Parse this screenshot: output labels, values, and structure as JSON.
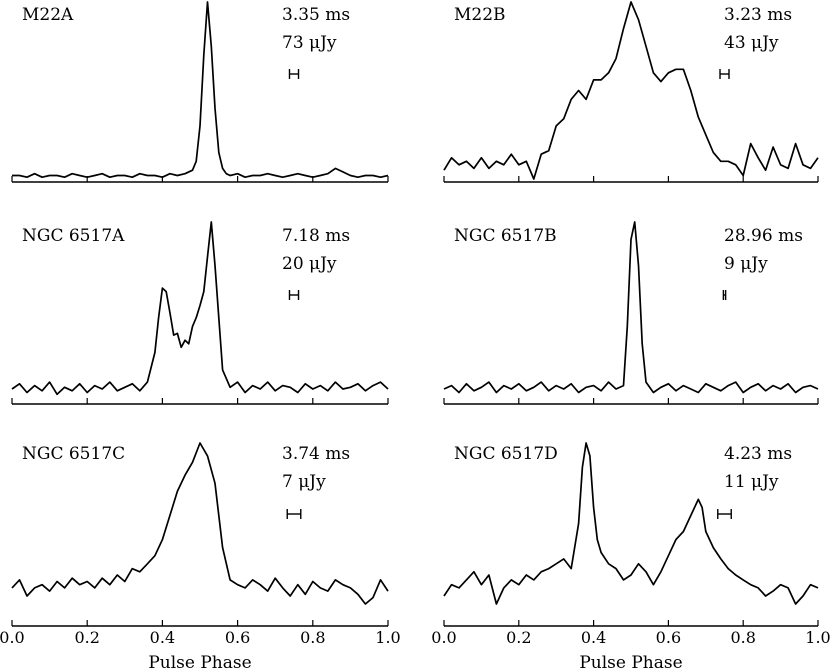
{
  "chart_data": [
    {
      "type": "line",
      "name": "M22A",
      "period": "3.35 ms",
      "flux": "73 μJy",
      "xlim": [
        0,
        1
      ],
      "ylim": [
        0,
        1
      ],
      "xticks": [
        0.0,
        0.2,
        0.4,
        0.6,
        0.8,
        1.0
      ],
      "show_tick_labels": false,
      "xlabel": "",
      "errorbar": {
        "center": 0.75,
        "halfwidth": 0.012
      },
      "x": [
        0.0,
        0.02,
        0.04,
        0.06,
        0.08,
        0.1,
        0.12,
        0.14,
        0.16,
        0.18,
        0.2,
        0.22,
        0.24,
        0.26,
        0.28,
        0.3,
        0.32,
        0.34,
        0.36,
        0.38,
        0.4,
        0.42,
        0.44,
        0.46,
        0.48,
        0.49,
        0.5,
        0.51,
        0.52,
        0.53,
        0.54,
        0.55,
        0.56,
        0.57,
        0.58,
        0.6,
        0.62,
        0.64,
        0.66,
        0.68,
        0.7,
        0.72,
        0.74,
        0.76,
        0.78,
        0.8,
        0.82,
        0.84,
        0.86,
        0.88,
        0.9,
        0.92,
        0.94,
        0.96,
        0.98,
        1.0
      ],
      "y": [
        0.02,
        0.02,
        0.01,
        0.03,
        0.01,
        0.02,
        0.02,
        0.01,
        0.03,
        0.02,
        0.01,
        0.02,
        0.03,
        0.01,
        0.02,
        0.02,
        0.01,
        0.03,
        0.02,
        0.02,
        0.01,
        0.03,
        0.02,
        0.03,
        0.05,
        0.1,
        0.3,
        0.7,
        1.0,
        0.75,
        0.4,
        0.15,
        0.06,
        0.03,
        0.02,
        0.03,
        0.01,
        0.02,
        0.02,
        0.03,
        0.02,
        0.01,
        0.02,
        0.03,
        0.02,
        0.01,
        0.02,
        0.03,
        0.06,
        0.04,
        0.02,
        0.01,
        0.02,
        0.02,
        0.01,
        0.02
      ]
    },
    {
      "type": "line",
      "name": "M22B",
      "period": "3.23 ms",
      "flux": "43 μJy",
      "xlim": [
        0,
        1
      ],
      "ylim": [
        0,
        1
      ],
      "xticks": [
        0.0,
        0.2,
        0.4,
        0.6,
        0.8,
        1.0
      ],
      "show_tick_labels": false,
      "xlabel": "",
      "errorbar": {
        "center": 0.75,
        "halfwidth": 0.012
      },
      "x": [
        0.0,
        0.02,
        0.04,
        0.06,
        0.08,
        0.1,
        0.12,
        0.14,
        0.16,
        0.18,
        0.2,
        0.22,
        0.24,
        0.26,
        0.28,
        0.3,
        0.32,
        0.34,
        0.36,
        0.38,
        0.4,
        0.42,
        0.44,
        0.46,
        0.48,
        0.5,
        0.52,
        0.54,
        0.56,
        0.58,
        0.6,
        0.62,
        0.64,
        0.66,
        0.68,
        0.7,
        0.72,
        0.74,
        0.76,
        0.78,
        0.8,
        0.82,
        0.84,
        0.86,
        0.88,
        0.9,
        0.92,
        0.94,
        0.96,
        0.98,
        1.0
      ],
      "y": [
        0.05,
        0.12,
        0.08,
        0.1,
        0.06,
        0.12,
        0.06,
        0.1,
        0.08,
        0.14,
        0.08,
        0.1,
        0.0,
        0.14,
        0.16,
        0.3,
        0.34,
        0.45,
        0.5,
        0.45,
        0.56,
        0.56,
        0.6,
        0.68,
        0.85,
        1.0,
        0.9,
        0.75,
        0.6,
        0.55,
        0.6,
        0.62,
        0.62,
        0.5,
        0.35,
        0.25,
        0.15,
        0.1,
        0.1,
        0.08,
        0.02,
        0.2,
        0.12,
        0.05,
        0.18,
        0.08,
        0.06,
        0.2,
        0.08,
        0.06,
        0.12
      ]
    },
    {
      "type": "line",
      "name": "NGC 6517A",
      "period": "7.18 ms",
      "flux": "20 μJy",
      "xlim": [
        0,
        1
      ],
      "ylim": [
        0,
        1
      ],
      "xticks": [
        0.0,
        0.2,
        0.4,
        0.6,
        0.8,
        1.0
      ],
      "show_tick_labels": false,
      "xlabel": "",
      "errorbar": {
        "center": 0.75,
        "halfwidth": 0.012
      },
      "x": [
        0.0,
        0.02,
        0.04,
        0.06,
        0.08,
        0.1,
        0.12,
        0.14,
        0.16,
        0.18,
        0.2,
        0.22,
        0.24,
        0.26,
        0.28,
        0.3,
        0.32,
        0.34,
        0.36,
        0.38,
        0.39,
        0.4,
        0.41,
        0.42,
        0.43,
        0.44,
        0.45,
        0.46,
        0.47,
        0.48,
        0.49,
        0.5,
        0.51,
        0.52,
        0.53,
        0.54,
        0.55,
        0.56,
        0.58,
        0.6,
        0.62,
        0.64,
        0.66,
        0.68,
        0.7,
        0.72,
        0.74,
        0.76,
        0.78,
        0.8,
        0.82,
        0.84,
        0.86,
        0.88,
        0.9,
        0.92,
        0.94,
        0.96,
        0.98,
        1.0
      ],
      "y": [
        0.04,
        0.07,
        0.02,
        0.06,
        0.03,
        0.08,
        0.01,
        0.05,
        0.03,
        0.07,
        0.02,
        0.06,
        0.04,
        0.08,
        0.03,
        0.05,
        0.07,
        0.03,
        0.08,
        0.25,
        0.45,
        0.62,
        0.6,
        0.48,
        0.35,
        0.36,
        0.28,
        0.32,
        0.3,
        0.4,
        0.45,
        0.52,
        0.6,
        0.8,
        1.0,
        0.75,
        0.45,
        0.15,
        0.05,
        0.08,
        0.02,
        0.06,
        0.04,
        0.08,
        0.03,
        0.06,
        0.05,
        0.02,
        0.07,
        0.04,
        0.06,
        0.03,
        0.08,
        0.04,
        0.05,
        0.07,
        0.03,
        0.06,
        0.08,
        0.04
      ]
    },
    {
      "type": "line",
      "name": "NGC 6517B",
      "period": "28.96 ms",
      "flux": "9 μJy",
      "xlim": [
        0,
        1
      ],
      "ylim": [
        0,
        1
      ],
      "xticks": [
        0.0,
        0.2,
        0.4,
        0.6,
        0.8,
        1.0
      ],
      "show_tick_labels": false,
      "xlabel": "",
      "errorbar": {
        "center": 0.75,
        "halfwidth": 0.003
      },
      "x": [
        0.0,
        0.02,
        0.04,
        0.06,
        0.08,
        0.1,
        0.12,
        0.14,
        0.16,
        0.18,
        0.2,
        0.22,
        0.24,
        0.26,
        0.28,
        0.3,
        0.32,
        0.34,
        0.36,
        0.38,
        0.4,
        0.42,
        0.44,
        0.46,
        0.48,
        0.49,
        0.5,
        0.51,
        0.52,
        0.53,
        0.54,
        0.56,
        0.58,
        0.6,
        0.62,
        0.64,
        0.66,
        0.68,
        0.7,
        0.72,
        0.74,
        0.76,
        0.78,
        0.8,
        0.82,
        0.84,
        0.86,
        0.88,
        0.9,
        0.92,
        0.94,
        0.96,
        0.98,
        1.0
      ],
      "y": [
        0.04,
        0.06,
        0.02,
        0.07,
        0.03,
        0.05,
        0.08,
        0.02,
        0.06,
        0.04,
        0.07,
        0.03,
        0.05,
        0.08,
        0.03,
        0.06,
        0.04,
        0.07,
        0.02,
        0.05,
        0.06,
        0.03,
        0.08,
        0.04,
        0.06,
        0.4,
        0.9,
        1.0,
        0.75,
        0.3,
        0.08,
        0.02,
        0.05,
        0.07,
        0.03,
        0.06,
        0.04,
        0.02,
        0.07,
        0.05,
        0.03,
        0.06,
        0.08,
        0.02,
        0.05,
        0.07,
        0.03,
        0.06,
        0.04,
        0.07,
        0.02,
        0.05,
        0.06,
        0.04
      ]
    },
    {
      "type": "line",
      "name": "NGC 6517C",
      "period": "3.74 ms",
      "flux": "7 μJy",
      "xlim": [
        0,
        1
      ],
      "ylim": [
        0,
        1
      ],
      "xticks": [
        0.0,
        0.2,
        0.4,
        0.6,
        0.8,
        1.0
      ],
      "show_tick_labels": true,
      "xlabel": "Pulse Phase",
      "errorbar": {
        "center": 0.75,
        "halfwidth": 0.018
      },
      "x": [
        0.0,
        0.02,
        0.04,
        0.06,
        0.08,
        0.1,
        0.12,
        0.14,
        0.16,
        0.18,
        0.2,
        0.22,
        0.24,
        0.26,
        0.28,
        0.3,
        0.32,
        0.34,
        0.36,
        0.38,
        0.4,
        0.42,
        0.44,
        0.46,
        0.48,
        0.5,
        0.52,
        0.54,
        0.56,
        0.58,
        0.6,
        0.62,
        0.64,
        0.66,
        0.68,
        0.7,
        0.72,
        0.74,
        0.76,
        0.78,
        0.8,
        0.82,
        0.84,
        0.86,
        0.88,
        0.9,
        0.92,
        0.94,
        0.96,
        0.98,
        1.0
      ],
      "y": [
        0.1,
        0.15,
        0.05,
        0.1,
        0.12,
        0.08,
        0.14,
        0.1,
        0.16,
        0.12,
        0.14,
        0.1,
        0.16,
        0.12,
        0.18,
        0.14,
        0.22,
        0.2,
        0.25,
        0.3,
        0.4,
        0.55,
        0.7,
        0.8,
        0.88,
        1.0,
        0.92,
        0.75,
        0.35,
        0.15,
        0.12,
        0.1,
        0.15,
        0.12,
        0.08,
        0.16,
        0.1,
        0.05,
        0.12,
        0.06,
        0.14,
        0.1,
        0.08,
        0.15,
        0.12,
        0.1,
        0.06,
        0.0,
        0.04,
        0.15,
        0.08
      ]
    },
    {
      "type": "line",
      "name": "NGC 6517D",
      "period": "4.23 ms",
      "flux": "11 μJy",
      "xlim": [
        0,
        1
      ],
      "ylim": [
        0,
        1
      ],
      "xticks": [
        0.0,
        0.2,
        0.4,
        0.6,
        0.8,
        1.0
      ],
      "show_tick_labels": true,
      "xlabel": "Pulse Phase",
      "errorbar": {
        "center": 0.75,
        "halfwidth": 0.018
      },
      "x": [
        0.0,
        0.02,
        0.04,
        0.06,
        0.08,
        0.1,
        0.12,
        0.14,
        0.16,
        0.18,
        0.2,
        0.22,
        0.24,
        0.26,
        0.28,
        0.3,
        0.32,
        0.34,
        0.36,
        0.37,
        0.38,
        0.39,
        0.4,
        0.41,
        0.42,
        0.44,
        0.46,
        0.48,
        0.5,
        0.52,
        0.54,
        0.56,
        0.58,
        0.6,
        0.62,
        0.64,
        0.66,
        0.68,
        0.69,
        0.7,
        0.72,
        0.74,
        0.76,
        0.78,
        0.8,
        0.82,
        0.84,
        0.86,
        0.88,
        0.9,
        0.92,
        0.94,
        0.96,
        0.98,
        1.0
      ],
      "y": [
        0.05,
        0.12,
        0.1,
        0.15,
        0.2,
        0.12,
        0.18,
        0.0,
        0.1,
        0.15,
        0.12,
        0.18,
        0.15,
        0.2,
        0.22,
        0.25,
        0.28,
        0.22,
        0.5,
        0.85,
        1.0,
        0.92,
        0.6,
        0.4,
        0.32,
        0.25,
        0.22,
        0.15,
        0.18,
        0.25,
        0.2,
        0.12,
        0.2,
        0.3,
        0.4,
        0.45,
        0.55,
        0.65,
        0.6,
        0.45,
        0.35,
        0.28,
        0.22,
        0.18,
        0.15,
        0.12,
        0.1,
        0.05,
        0.08,
        0.12,
        0.1,
        0.0,
        0.05,
        0.12,
        0.1
      ]
    }
  ]
}
